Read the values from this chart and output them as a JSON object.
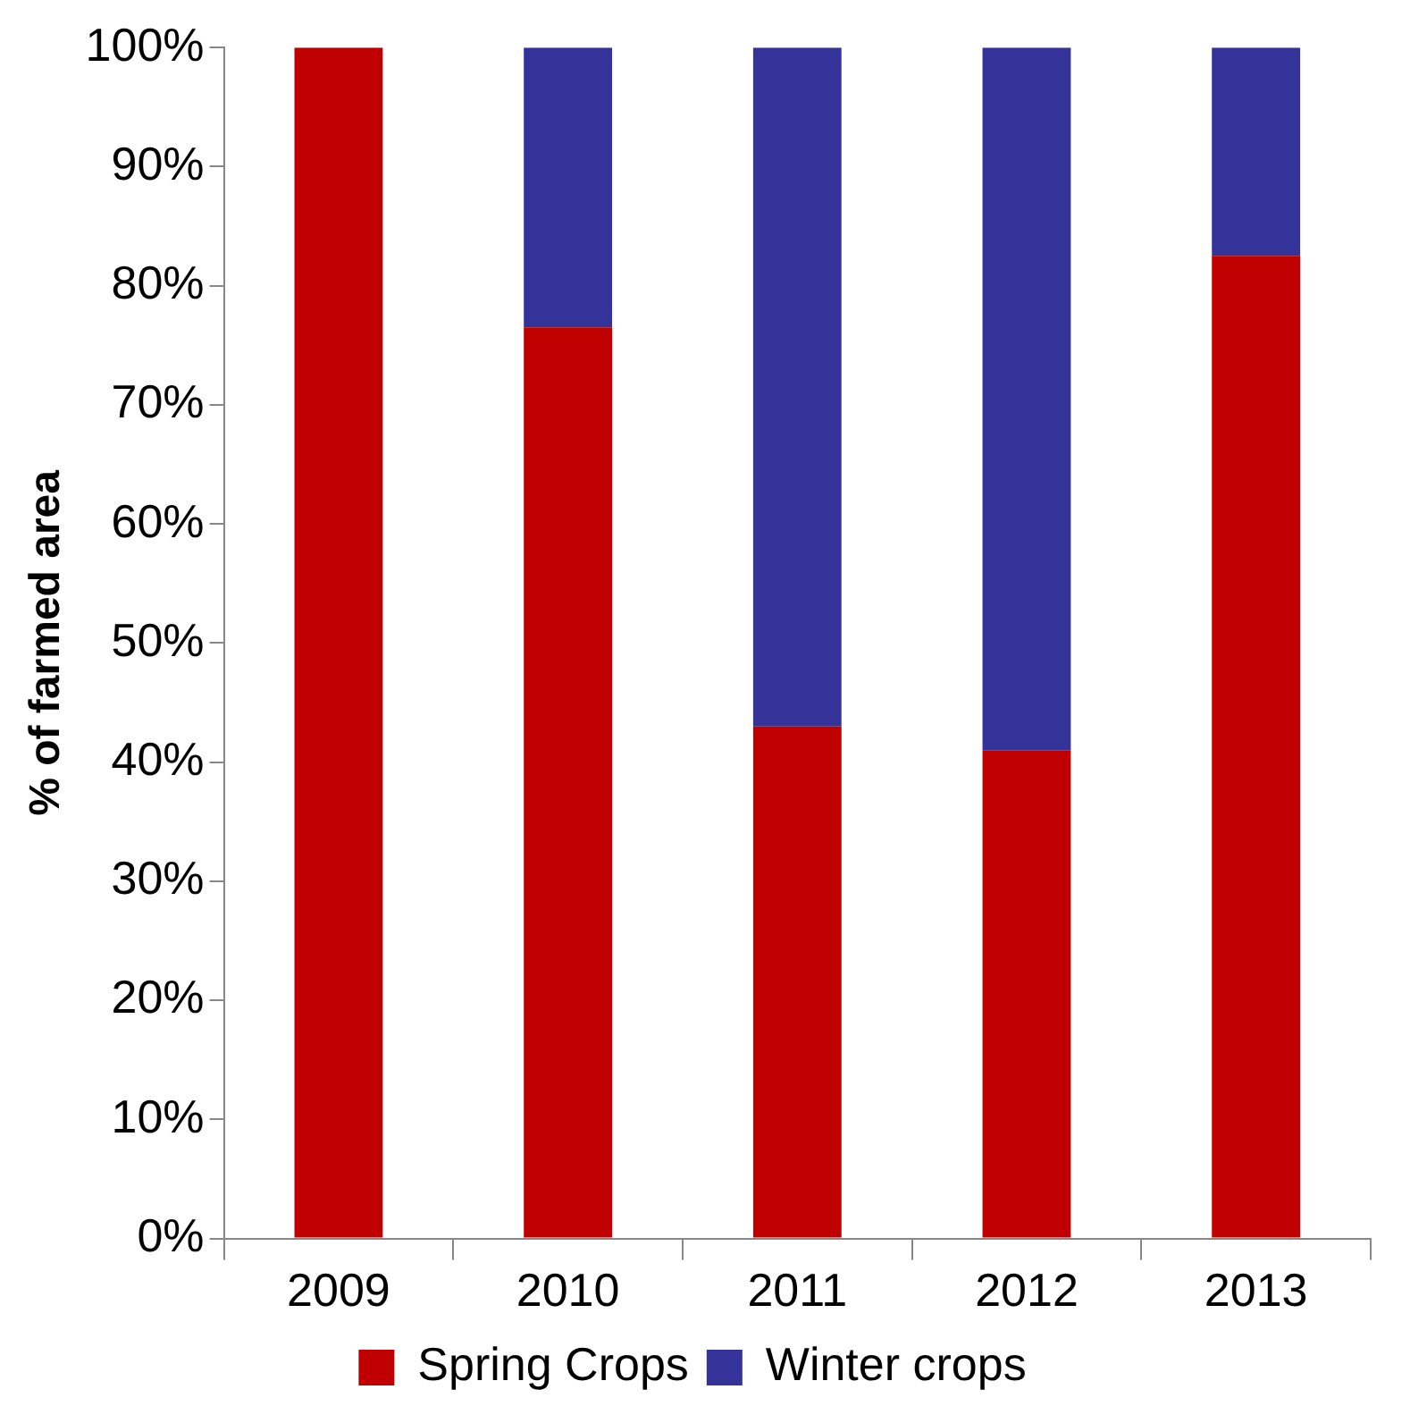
{
  "chart_data": {
    "type": "bar",
    "stacked": true,
    "ylabel": "% of farmed area",
    "categories": [
      "2009",
      "2010",
      "2011",
      "2012",
      "2013"
    ],
    "series": [
      {
        "name": "Spring Crops",
        "color": "#c00000",
        "values": [
          100,
          76.5,
          43,
          41,
          82.5
        ]
      },
      {
        "name": "Winter crops",
        "color": "#333399",
        "values": [
          0,
          23.5,
          57,
          59,
          17.5
        ]
      }
    ],
    "ylim": [
      0,
      100
    ],
    "yticks": [
      {
        "value": 0,
        "label": "0%"
      },
      {
        "value": 10,
        "label": "10%"
      },
      {
        "value": 20,
        "label": "20%"
      },
      {
        "value": 30,
        "label": "30%"
      },
      {
        "value": 40,
        "label": "40%"
      },
      {
        "value": 50,
        "label": "50%"
      },
      {
        "value": 60,
        "label": "60%"
      },
      {
        "value": 70,
        "label": "70%"
      },
      {
        "value": 80,
        "label": "80%"
      },
      {
        "value": 90,
        "label": "90%"
      },
      {
        "value": 100,
        "label": "100%"
      }
    ],
    "grid": false,
    "legend": "bottom"
  }
}
